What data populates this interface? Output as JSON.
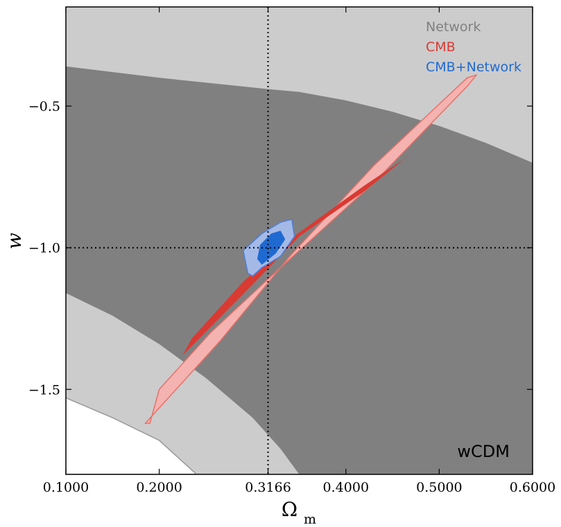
{
  "chart_data": {
    "type": "contour",
    "xlabel": "Ωm",
    "ylabel": "w",
    "xlim": [
      0.1,
      0.6
    ],
    "ylim": [
      -1.8,
      -0.15
    ],
    "xticks": [
      0.1,
      0.2,
      0.3166,
      0.4,
      0.5,
      0.6
    ],
    "xtick_labels": [
      "0.1000",
      "0.2000",
      "0.3166",
      "0.4000",
      "0.5000",
      "0.6000"
    ],
    "yticks": [
      -0.5,
      -1.0,
      -1.5
    ],
    "ytick_labels": [
      "−0.5",
      "−1.0",
      "−1.5"
    ],
    "fiducial": {
      "x": 0.3166,
      "y": -1.0
    },
    "annotation": "wCDM",
    "legend_position": "top-right",
    "grid": false,
    "series": [
      {
        "name": "Network",
        "color": "#808080",
        "levels": [
          {
            "level": "95%",
            "color": "#cccccc",
            "upper_boundary": [
              [
                0.1,
                -1.53
              ],
              [
                0.15,
                -1.6
              ],
              [
                0.2,
                -1.68
              ],
              [
                0.24,
                -1.8
              ]
            ]
          },
          {
            "level": "68%",
            "color": "#808080",
            "upper_boundary": [
              [
                0.1,
                -0.36
              ],
              [
                0.2,
                -0.4
              ],
              [
                0.3166,
                -0.44
              ],
              [
                0.35,
                -0.45
              ],
              [
                0.4,
                -0.48
              ],
              [
                0.45,
                -0.52
              ],
              [
                0.5,
                -0.57
              ],
              [
                0.55,
                -0.63
              ],
              [
                0.6,
                -0.7
              ]
            ],
            "lower_boundary": [
              [
                0.1,
                -1.16
              ],
              [
                0.15,
                -1.24
              ],
              [
                0.2,
                -1.34
              ],
              [
                0.25,
                -1.46
              ],
              [
                0.3,
                -1.6
              ],
              [
                0.33,
                -1.71
              ],
              [
                0.35,
                -1.8
              ]
            ]
          }
        ]
      },
      {
        "name": "CMB",
        "color": "#d93a32",
        "levels": [
          {
            "level": "95%",
            "color": "#f4b3b0",
            "outline": [
              [
                0.185,
                -1.62
              ],
              [
                0.265,
                -1.33
              ],
              [
                0.34,
                -1.03
              ],
              [
                0.43,
                -0.71
              ],
              [
                0.53,
                -0.4
              ],
              [
                0.54,
                -0.39
              ],
              [
                0.53,
                -0.43
              ],
              [
                0.43,
                -0.77
              ],
              [
                0.33,
                -1.07
              ],
              [
                0.255,
                -1.3
              ],
              [
                0.2,
                -1.5
              ],
              [
                0.19,
                -1.62
              ]
            ]
          },
          {
            "level": "68%",
            "color": "#d93a32",
            "outline": [
              [
                0.225,
                -1.38
              ],
              [
                0.3,
                -1.13
              ],
              [
                0.35,
                -0.96
              ],
              [
                0.42,
                -0.8
              ],
              [
                0.465,
                -0.68
              ],
              [
                0.47,
                -0.67
              ],
              [
                0.42,
                -0.78
              ],
              [
                0.34,
                -0.97
              ],
              [
                0.29,
                -1.12
              ],
              [
                0.235,
                -1.32
              ],
              [
                0.225,
                -1.38
              ]
            ]
          }
        ]
      },
      {
        "name": "CMB+Network",
        "color": "#1f6ad1",
        "levels": [
          {
            "level": "95%",
            "color": "#a4b9e6",
            "outline": [
              [
                0.295,
                -1.09
              ],
              [
                0.29,
                -1.01
              ],
              [
                0.31,
                -0.95
              ],
              [
                0.33,
                -0.91
              ],
              [
                0.342,
                -0.9
              ],
              [
                0.345,
                -0.96
              ],
              [
                0.33,
                -1.03
              ],
              [
                0.31,
                -1.07
              ],
              [
                0.3,
                -1.1
              ]
            ]
          },
          {
            "level": "68%",
            "color": "#1f6ad1",
            "outline": [
              [
                0.305,
                -1.04
              ],
              [
                0.308,
                -0.99
              ],
              [
                0.32,
                -0.95
              ],
              [
                0.33,
                -0.94
              ],
              [
                0.335,
                -0.97
              ],
              [
                0.325,
                -1.02
              ],
              [
                0.31,
                -1.06
              ]
            ]
          }
        ]
      }
    ]
  }
}
